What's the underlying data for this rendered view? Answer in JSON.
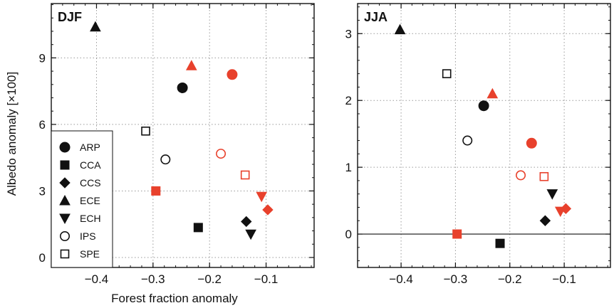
{
  "colors": {
    "black": "#111111",
    "red": "#e8412c"
  },
  "chart_data": [
    {
      "type": "scatter",
      "title": "DJF",
      "xlabel": "Forest fraction anomaly",
      "ylabel": "Albedo anomaly  [×100]",
      "xlim": [
        -0.48,
        -0.015
      ],
      "ylim": [
        -0.45,
        11.45
      ],
      "xticks": [
        -0.4,
        -0.3,
        -0.2,
        -0.1
      ],
      "xtick_labels": [
        "−0.4",
        "−0.3",
        "−0.2",
        "−0.1"
      ],
      "yticks": [
        0,
        3,
        6,
        9
      ],
      "ytick_labels": [
        "0",
        "3",
        "6",
        "9"
      ],
      "grid": true,
      "legend_position": "bottom-left",
      "series": [
        {
          "name": "ARP",
          "marker": "circle",
          "points": [
            {
              "x": -0.248,
              "y": 7.65,
              "color": "black",
              "filled": true
            },
            {
              "x": -0.16,
              "y": 8.25,
              "color": "red",
              "filled": true
            }
          ]
        },
        {
          "name": "CCA",
          "marker": "square",
          "points": [
            {
              "x": -0.22,
              "y": 1.35,
              "color": "black",
              "filled": true
            },
            {
              "x": -0.295,
              "y": 3.0,
              "color": "red",
              "filled": true
            }
          ]
        },
        {
          "name": "CCS",
          "marker": "diamond",
          "points": [
            {
              "x": -0.135,
              "y": 1.62,
              "color": "black",
              "filled": true
            },
            {
              "x": -0.097,
              "y": 2.15,
              "color": "red",
              "filled": true
            }
          ]
        },
        {
          "name": "ECE",
          "marker": "triangle-up",
          "points": [
            {
              "x": -0.402,
              "y": 10.4,
              "color": "black",
              "filled": true
            },
            {
              "x": -0.232,
              "y": 8.65,
              "color": "red",
              "filled": true
            }
          ]
        },
        {
          "name": "ECH",
          "marker": "triangle-down",
          "points": [
            {
              "x": -0.127,
              "y": 1.05,
              "color": "black",
              "filled": true
            },
            {
              "x": -0.108,
              "y": 2.75,
              "color": "red",
              "filled": true
            }
          ]
        },
        {
          "name": "IPS",
          "marker": "circle",
          "points": [
            {
              "x": -0.278,
              "y": 4.42,
              "color": "black",
              "filled": false
            },
            {
              "x": -0.18,
              "y": 4.68,
              "color": "red",
              "filled": false
            }
          ]
        },
        {
          "name": "SPE",
          "marker": "square",
          "points": [
            {
              "x": -0.313,
              "y": 5.7,
              "color": "black",
              "filled": false
            },
            {
              "x": -0.137,
              "y": 3.72,
              "color": "red",
              "filled": false
            }
          ]
        }
      ]
    },
    {
      "type": "scatter",
      "title": "JJA",
      "xlabel": "",
      "ylabel": "",
      "xlim": [
        -0.48,
        -0.015
      ],
      "ylim": [
        -0.5,
        3.45
      ],
      "xticks": [
        -0.4,
        -0.3,
        -0.2,
        -0.1
      ],
      "xtick_labels": [
        "−0.4",
        "−0.3",
        "−0.2",
        "−0.1"
      ],
      "yticks": [
        0,
        1,
        2,
        3
      ],
      "ytick_labels": [
        "0",
        "1",
        "2",
        "3"
      ],
      "grid": true,
      "zero_line": true,
      "series": [
        {
          "name": "ARP",
          "marker": "circle",
          "points": [
            {
              "x": -0.248,
              "y": 1.92,
              "color": "black",
              "filled": true
            },
            {
              "x": -0.16,
              "y": 1.36,
              "color": "red",
              "filled": true
            }
          ]
        },
        {
          "name": "CCA",
          "marker": "square",
          "points": [
            {
              "x": -0.218,
              "y": -0.14,
              "color": "black",
              "filled": true
            },
            {
              "x": -0.297,
              "y": 0.0,
              "color": "red",
              "filled": true
            }
          ]
        },
        {
          "name": "CCS",
          "marker": "diamond",
          "points": [
            {
              "x": -0.135,
              "y": 0.2,
              "color": "black",
              "filled": true
            },
            {
              "x": -0.097,
              "y": 0.38,
              "color": "red",
              "filled": true
            }
          ]
        },
        {
          "name": "ECE",
          "marker": "triangle-up",
          "points": [
            {
              "x": -0.402,
              "y": 3.06,
              "color": "black",
              "filled": true
            },
            {
              "x": -0.232,
              "y": 2.1,
              "color": "red",
              "filled": true
            }
          ]
        },
        {
          "name": "ECH",
          "marker": "triangle-down",
          "points": [
            {
              "x": -0.122,
              "y": 0.6,
              "color": "black",
              "filled": true
            },
            {
              "x": -0.107,
              "y": 0.34,
              "color": "red",
              "filled": true
            }
          ]
        },
        {
          "name": "IPS",
          "marker": "circle",
          "points": [
            {
              "x": -0.278,
              "y": 1.4,
              "color": "black",
              "filled": false
            },
            {
              "x": -0.18,
              "y": 0.88,
              "color": "red",
              "filled": false
            }
          ]
        },
        {
          "name": "SPE",
          "marker": "square",
          "points": [
            {
              "x": -0.316,
              "y": 2.4,
              "color": "black",
              "filled": false
            },
            {
              "x": -0.137,
              "y": 0.86,
              "color": "red",
              "filled": false
            }
          ]
        }
      ]
    }
  ]
}
